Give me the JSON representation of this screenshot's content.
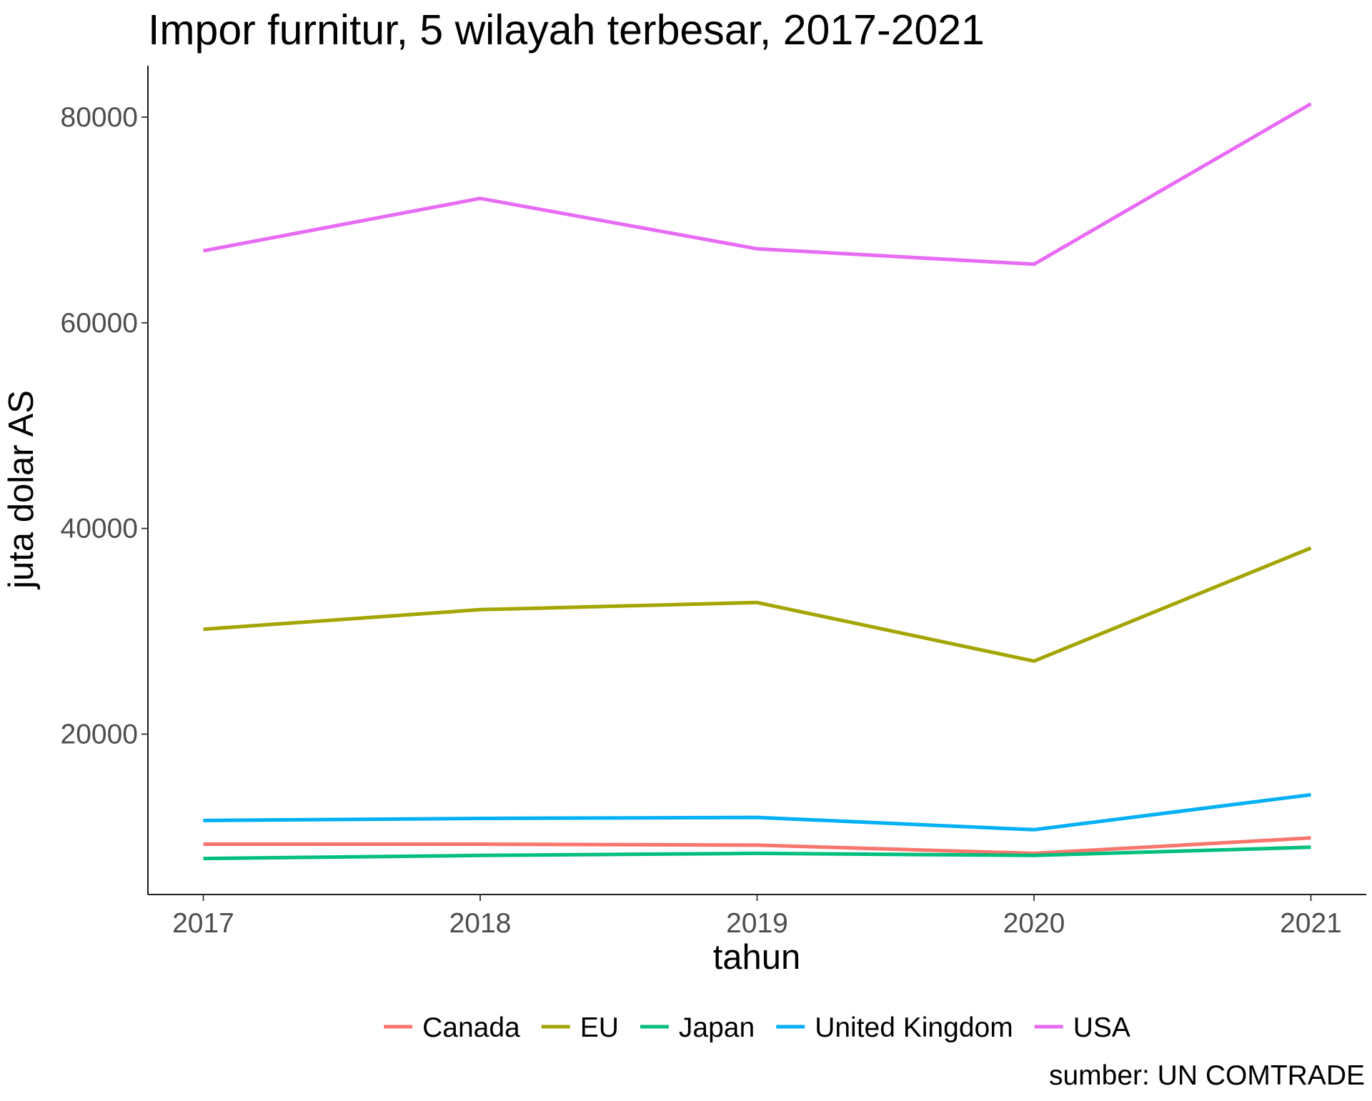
{
  "chart_data": {
    "type": "line",
    "title": "Impor furnitur, 5 wilayah terbesar, 2017-2021",
    "xlabel": "tahun",
    "ylabel": "juta dolar AS",
    "caption": "sumber: UN COMTRADE",
    "x": [
      2017,
      2018,
      2019,
      2020,
      2021
    ],
    "xlim": [
      2016.8,
      2021.2
    ],
    "ylim": [
      4400,
      85000
    ],
    "y_ticks": [
      20000,
      40000,
      60000,
      80000
    ],
    "grid": false,
    "legend_position": "bottom",
    "series": [
      {
        "name": "Canada",
        "color": "#F8766D",
        "values": [
          9300,
          9300,
          9200,
          8400,
          9900
        ]
      },
      {
        "name": "EU",
        "color": "#A3A500",
        "values": [
          30200,
          32100,
          32800,
          27100,
          38100
        ]
      },
      {
        "name": "Japan",
        "color": "#00BF7D",
        "values": [
          7900,
          8200,
          8400,
          8200,
          9000
        ]
      },
      {
        "name": "United Kingdom",
        "color": "#00B0F6",
        "values": [
          11600,
          11800,
          11900,
          10700,
          14100
        ]
      },
      {
        "name": "USA",
        "color": "#E76BF3",
        "values": [
          67000,
          72100,
          67200,
          65700,
          81300
        ]
      }
    ]
  }
}
